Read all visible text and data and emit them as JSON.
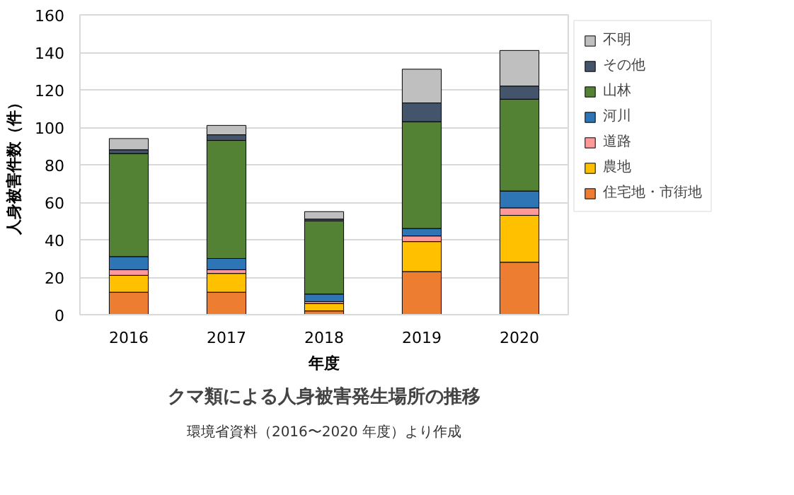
{
  "chart_data": {
    "type": "bar",
    "stacked": true,
    "title": "クマ類による人身被害発生場所の推移",
    "xlabel": "年度",
    "ylabel": "人身被害件数（件）",
    "annotations": [
      "環境省資料（2016〜2020 年度）より作成"
    ],
    "categories": [
      "2016",
      "2017",
      "2018",
      "2019",
      "2020"
    ],
    "series": [
      {
        "name": "住宅地・市街地",
        "color": "#ed7d31",
        "values": [
          12,
          12,
          2,
          23,
          28
        ]
      },
      {
        "name": "農地",
        "color": "#ffc000",
        "values": [
          9,
          10,
          4,
          16,
          25
        ]
      },
      {
        "name": "道路",
        "color": "#ff9999",
        "values": [
          3,
          2,
          1,
          3,
          4
        ]
      },
      {
        "name": "河川",
        "color": "#2e75b6",
        "values": [
          7,
          6,
          4,
          4,
          9
        ]
      },
      {
        "name": "山林",
        "color": "#548235",
        "values": [
          55,
          63,
          39,
          57,
          49
        ]
      },
      {
        "name": "その他",
        "color": "#44546a",
        "values": [
          2,
          3,
          1,
          10,
          7
        ]
      },
      {
        "name": "不明",
        "color": "#bfbfbf",
        "values": [
          6,
          5,
          4,
          18,
          19
        ]
      }
    ],
    "ylim": [
      0,
      160
    ],
    "yticks": [
      0,
      20,
      40,
      60,
      80,
      100,
      120,
      140,
      160
    ],
    "grid": "y",
    "legend": "right"
  }
}
